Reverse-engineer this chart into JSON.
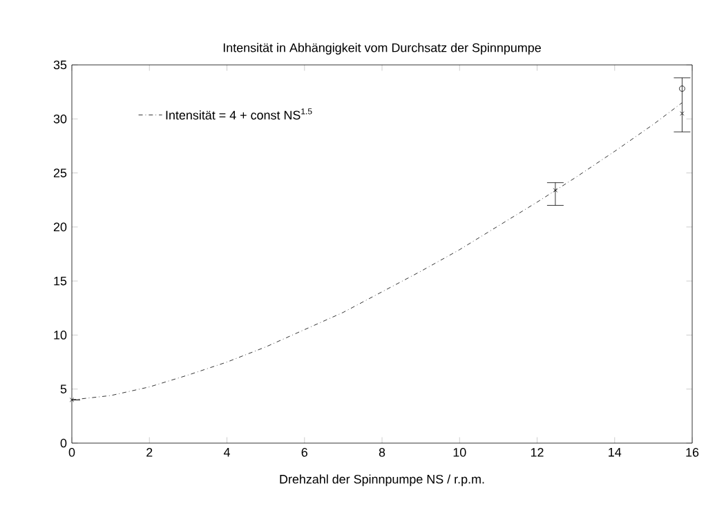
{
  "chart_data": {
    "type": "scatter",
    "title": "Intensität in Abhängigkeit vom Durchsatz der Spinnpumpe",
    "xlabel": "Drehzahl der Spinnpumpe NS / r.p.m.",
    "xlim": [
      0,
      16
    ],
    "ylim": [
      0,
      35
    ],
    "xticks": [
      0,
      2,
      4,
      6,
      8,
      10,
      12,
      14,
      16
    ],
    "yticks": [
      0,
      5,
      10,
      15,
      20,
      25,
      30,
      35
    ],
    "grid": false,
    "legend": "top left",
    "series": [
      {
        "name": "Intensität = 4 + const  NS$^{1.5}$",
        "type": "line",
        "line_style": "dashed",
        "marker": "none",
        "color": "#000000",
        "x": [
          0,
          1,
          2,
          3,
          4,
          5,
          6,
          7,
          8,
          9,
          10,
          11,
          12,
          13,
          14,
          15,
          15.74
        ],
        "values": [
          4,
          4.4,
          5.2,
          6.3,
          7.5,
          8.9,
          10.5,
          12.1,
          14,
          15.9,
          17.9,
          20.1,
          22.3,
          24.6,
          27,
          29.5,
          31.5
        ]
      },
      {
        "marker": "cross",
        "color": "#000000",
        "x": [
          0,
          12.47,
          15.74
        ],
        "values": [
          4,
          23.4,
          30.5
        ],
        "errors": [
          null,
          [
            22.0,
            24.1
          ],
          [
            28.8,
            33.8
          ]
        ]
      },
      {
        "marker": "circle",
        "color": "#000000",
        "x": [
          15.74
        ],
        "values": [
          32.8
        ]
      }
    ]
  }
}
